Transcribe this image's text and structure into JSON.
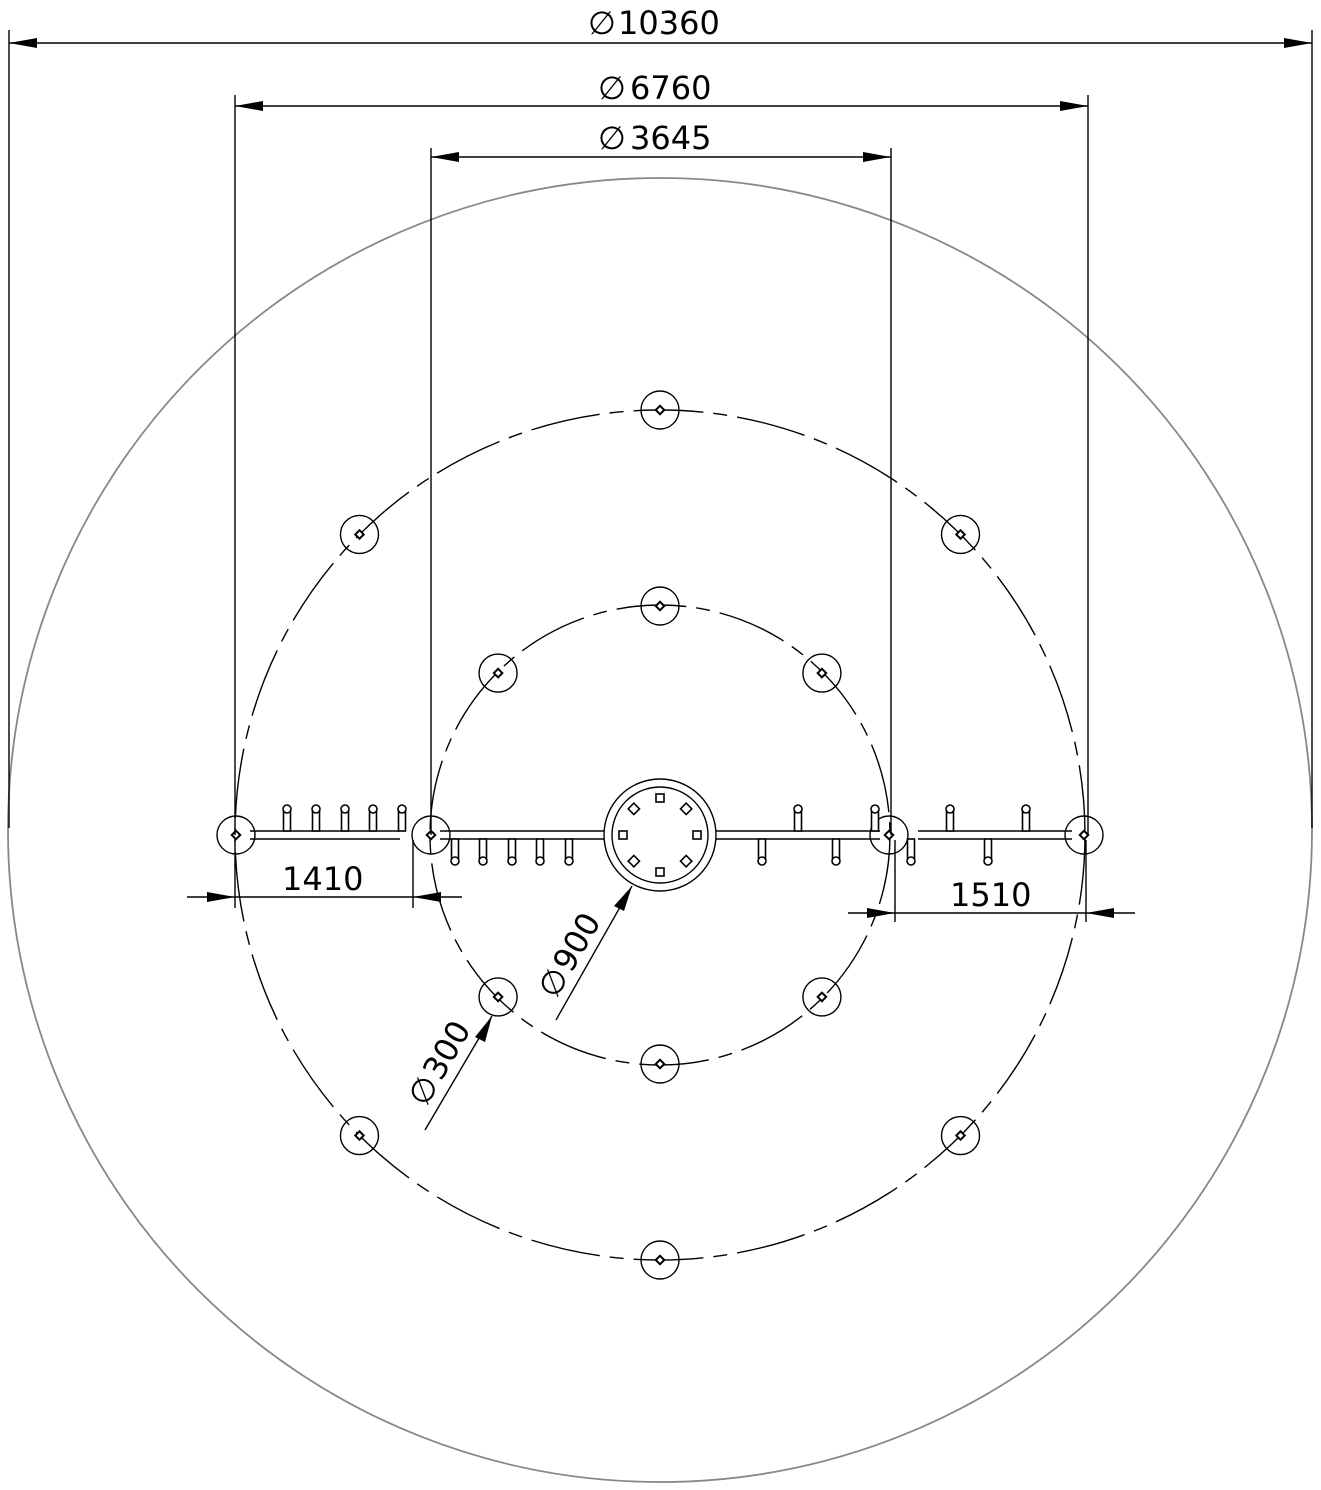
{
  "dimensions": {
    "outer_diameter": "10360",
    "mid_diameter": "6760",
    "inner_diameter": "3645",
    "left_spacing": "1410",
    "right_spacing": "1510",
    "center_diameter": "900",
    "nozzle_diameter": "300"
  },
  "symbols": {
    "diameter": "∅"
  },
  "counts": {
    "outer_ring_nozzles": 8,
    "inner_ring_nozzles": 8,
    "hub_slots": 8
  }
}
